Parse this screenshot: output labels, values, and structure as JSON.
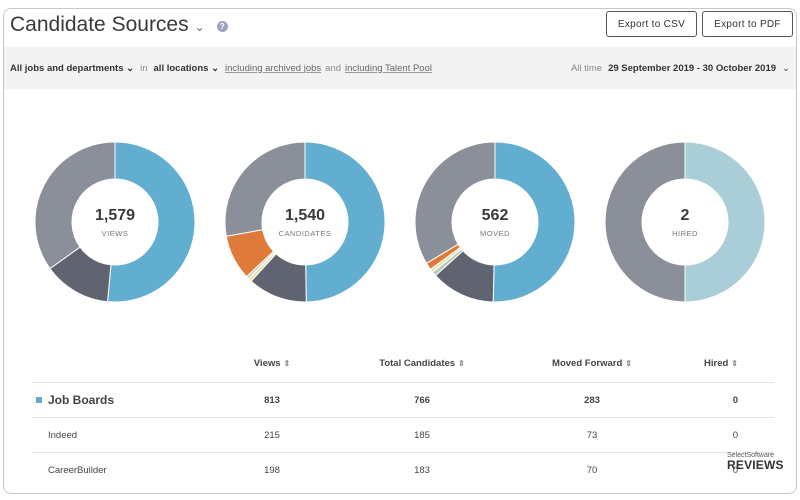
{
  "header": {
    "title": "Candidate Sources",
    "help_glyph": "?",
    "export_csv": "Export to CSV",
    "export_pdf": "Export to PDF"
  },
  "filters": {
    "jobs": "All jobs and departments",
    "in_word": "in",
    "locations": "all locations",
    "archived": "including archived jobs",
    "and_word": "and",
    "talent_pool": "including Talent Pool",
    "period_label": "All time",
    "date_range": "29 September 2019 - 30 October 2019"
  },
  "colors": {
    "blue": "#62aed0",
    "grey": "#8a8f9a",
    "dark": "#5f6470",
    "orange": "#e07a3a",
    "light_blue": "#a9ced8",
    "cream": "#e9e2b6",
    "sage": "#bcc9b8"
  },
  "chart_data": [
    {
      "type": "pie",
      "center_value": "1,579",
      "center_label": "VIEWS",
      "slices": [
        {
          "color": "#62aed0",
          "value": 813
        },
        {
          "color": "#5f6470",
          "value": 215
        },
        {
          "color": "#8a8f9a",
          "value": 551
        }
      ]
    },
    {
      "type": "pie",
      "center_value": "1,540",
      "center_label": "CANDIDATES",
      "slices": [
        {
          "color": "#62aed0",
          "value": 766
        },
        {
          "color": "#5f6470",
          "value": 185
        },
        {
          "color": "#e9e2b6",
          "value": 12
        },
        {
          "color": "#bcc9b8",
          "value": 8
        },
        {
          "color": "#e07a3a",
          "value": 140
        },
        {
          "color": "#8a8f9a",
          "value": 429
        }
      ]
    },
    {
      "type": "pie",
      "center_value": "562",
      "center_label": "MOVED",
      "slices": [
        {
          "color": "#62aed0",
          "value": 283
        },
        {
          "color": "#5f6470",
          "value": 73
        },
        {
          "color": "#bcc9b8",
          "value": 5
        },
        {
          "color": "#e9e2b6",
          "value": 4
        },
        {
          "color": "#e07a3a",
          "value": 8
        },
        {
          "color": "#8a8f9a",
          "value": 189
        }
      ]
    },
    {
      "type": "pie",
      "center_value": "2",
      "center_label": "HIRED",
      "slices": [
        {
          "color": "#a9ced8",
          "value": 1
        },
        {
          "color": "#8a8f9a",
          "value": 1
        }
      ]
    }
  ],
  "table": {
    "headers": [
      "Views",
      "Total Candidates",
      "Moved Forward",
      "Hired"
    ],
    "sort_glyph": "⇕",
    "rows": [
      {
        "name": "Job Boards",
        "views": "813",
        "candidates": "766",
        "moved": "283",
        "hired": "0"
      },
      {
        "name": "Indeed",
        "views": "215",
        "candidates": "185",
        "moved": "73",
        "hired": "0"
      },
      {
        "name": "CareerBuilder",
        "views": "198",
        "candidates": "183",
        "moved": "70",
        "hired": "0"
      }
    ]
  },
  "watermark": {
    "small": "SelectSoftware",
    "big": "REVIEWS"
  }
}
